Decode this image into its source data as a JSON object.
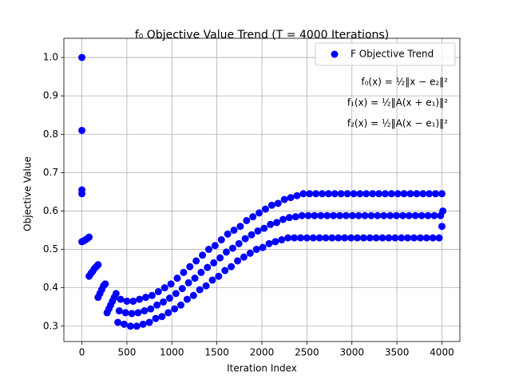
{
  "chart_data": {
    "type": "scatter",
    "title": "f₀ Objective Value Trend (T = 4000 Iterations)",
    "xlabel": "Iteration Index",
    "ylabel": "Objective Value",
    "annotations": [
      "f₀(x) = ½‖x − e₂‖²",
      "f₁(x) = ½‖A(x + e₁)‖²",
      "f₂(x) = ½‖A(x − e₁)‖²"
    ],
    "legend": "upper right",
    "grid": true,
    "xlim": [
      -200,
      4200
    ],
    "ylim": [
      0.26,
      1.05
    ],
    "xticks": [
      0,
      500,
      1000,
      1500,
      2000,
      2500,
      3000,
      3500,
      4000
    ],
    "yticks": [
      0.3,
      0.4,
      0.5,
      0.6,
      0.7,
      0.8,
      0.9,
      {
        "value": 1,
        "label": "1.0"
      }
    ],
    "series": [
      {
        "name": "F Objective Trend",
        "color": "#0000ff",
        "x": [
          0,
          0,
          0,
          0,
          0,
          20,
          40,
          60,
          80,
          80,
          100,
          120,
          140,
          160,
          180,
          180,
          200,
          220,
          240,
          260,
          280,
          300,
          320,
          340,
          360,
          380,
          400,
          415,
          430,
          470,
          485,
          500,
          540,
          555,
          570,
          610,
          625,
          640,
          680,
          695,
          710,
          750,
          765,
          780,
          820,
          835,
          850,
          890,
          905,
          920,
          960,
          975,
          990,
          1030,
          1045,
          1060,
          1100,
          1115,
          1130,
          1170,
          1185,
          1200,
          1240,
          1255,
          1270,
          1310,
          1325,
          1340,
          1380,
          1395,
          1410,
          1450,
          1465,
          1480,
          1520,
          1535,
          1550,
          1590,
          1605,
          1620,
          1660,
          1675,
          1690,
          1730,
          1745,
          1760,
          1800,
          1815,
          1830,
          1870,
          1885,
          1900,
          1940,
          1955,
          1970,
          2010,
          2025,
          2040,
          2080,
          2095,
          2110,
          2150,
          2165,
          2180,
          2220,
          2235,
          2250,
          2290,
          2305,
          2320,
          2360,
          2375,
          2390,
          2430,
          2445,
          2460,
          2500,
          2515,
          2530,
          2570,
          2585,
          2600,
          2640,
          2655,
          2670,
          2710,
          2725,
          2740,
          2780,
          2795,
          2810,
          2850,
          2865,
          2880,
          2920,
          2935,
          2950,
          2990,
          3005,
          3020,
          3060,
          3075,
          3090,
          3130,
          3145,
          3160,
          3200,
          3215,
          3230,
          3270,
          3285,
          3300,
          3340,
          3355,
          3370,
          3410,
          3425,
          3440,
          3480,
          3495,
          3510,
          3550,
          3565,
          3580,
          3620,
          3635,
          3650,
          3690,
          3705,
          3720,
          3760,
          3775,
          3790,
          3830,
          3845,
          3860,
          3900,
          3915,
          3930,
          3970,
          3985,
          4000,
          4000,
          4010
        ],
        "values": [
          1.0,
          0.81,
          0.655,
          0.645,
          0.52,
          0.522,
          0.525,
          0.528,
          0.532,
          0.43,
          0.437,
          0.443,
          0.45,
          0.455,
          0.46,
          0.375,
          0.385,
          0.395,
          0.405,
          0.41,
          0.335,
          0.345,
          0.355,
          0.365,
          0.375,
          0.385,
          0.31,
          0.34,
          0.37,
          0.305,
          0.335,
          0.365,
          0.3,
          0.333,
          0.365,
          0.3,
          0.335,
          0.37,
          0.305,
          0.34,
          0.375,
          0.31,
          0.345,
          0.38,
          0.32,
          0.355,
          0.39,
          0.325,
          0.363,
          0.4,
          0.335,
          0.373,
          0.41,
          0.345,
          0.385,
          0.425,
          0.355,
          0.398,
          0.44,
          0.37,
          0.413,
          0.455,
          0.38,
          0.425,
          0.47,
          0.395,
          0.44,
          0.485,
          0.405,
          0.453,
          0.5,
          0.42,
          0.465,
          0.51,
          0.43,
          0.478,
          0.525,
          0.445,
          0.493,
          0.54,
          0.455,
          0.503,
          0.55,
          0.47,
          0.515,
          0.56,
          0.48,
          0.528,
          0.575,
          0.49,
          0.538,
          0.585,
          0.5,
          0.548,
          0.595,
          0.505,
          0.555,
          0.605,
          0.515,
          0.565,
          0.615,
          0.52,
          0.57,
          0.62,
          0.525,
          0.578,
          0.63,
          0.53,
          0.583,
          0.635,
          0.53,
          0.585,
          0.64,
          0.53,
          0.588,
          0.645,
          0.53,
          0.588,
          0.645,
          0.53,
          0.588,
          0.645,
          0.53,
          0.588,
          0.645,
          0.53,
          0.588,
          0.645,
          0.53,
          0.588,
          0.645,
          0.53,
          0.588,
          0.645,
          0.53,
          0.588,
          0.645,
          0.53,
          0.588,
          0.645,
          0.53,
          0.588,
          0.645,
          0.53,
          0.588,
          0.645,
          0.53,
          0.588,
          0.645,
          0.53,
          0.588,
          0.645,
          0.53,
          0.588,
          0.645,
          0.53,
          0.588,
          0.645,
          0.53,
          0.588,
          0.645,
          0.53,
          0.588,
          0.645,
          0.53,
          0.588,
          0.645,
          0.53,
          0.588,
          0.645,
          0.53,
          0.588,
          0.645,
          0.53,
          0.588,
          0.645,
          0.53,
          0.588,
          0.645,
          0.53,
          0.588,
          0.645,
          0.56,
          0.6
        ]
      }
    ]
  }
}
